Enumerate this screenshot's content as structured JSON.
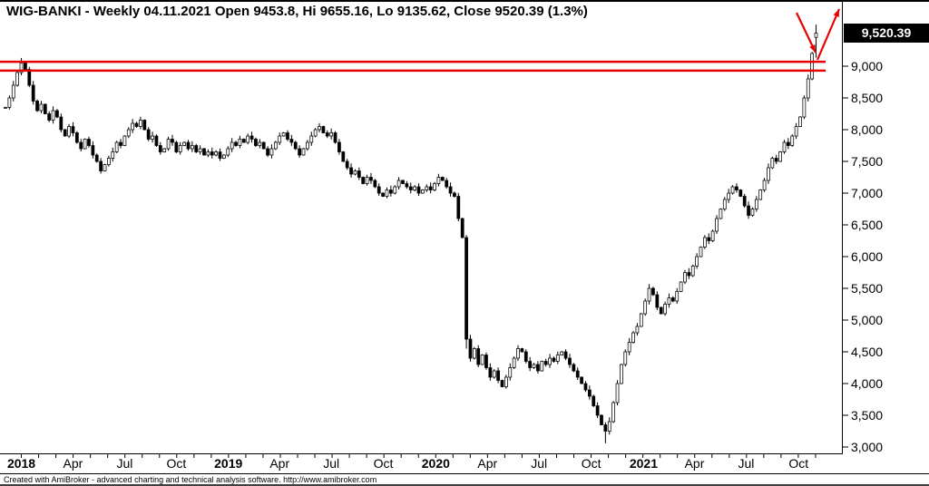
{
  "title": "WIG-BANKI - Weekly 04.11.2021 Open 9453.8, Hi 9655.16, Lo 9135.62, Close 9520.39 (1.3%)",
  "price_badge": "9,520.39",
  "footer": "Created with AmiBroker - advanced charting and technical analysis software. http://www.amibroker.com",
  "colors": {
    "background": "#ffffff",
    "candle": "#000000",
    "candle_up_fill": "#ffffff",
    "axis": "#000000",
    "annotation_red": "#e80000",
    "badge_bg": "#000000",
    "badge_text": "#ffffff"
  },
  "chart_data": {
    "type": "candlestick",
    "symbol": "WIG-BANKI",
    "interval": "Weekly",
    "last_date": "04.11.2021",
    "last_candle": {
      "open": 9453.8,
      "high": 9655.16,
      "low": 9135.62,
      "close": 9520.39,
      "change_pct": "1.3%"
    },
    "ylim": [
      2950,
      9900
    ],
    "grid": "off",
    "resistance_zone": [
      8930,
      9070
    ],
    "y_ticks": [
      {
        "label": "9,000",
        "value": 9000
      },
      {
        "label": "8,500",
        "value": 8500
      },
      {
        "label": "8,000",
        "value": 8000
      },
      {
        "label": "7,500",
        "value": 7500
      },
      {
        "label": "7,000",
        "value": 7000
      },
      {
        "label": "6,500",
        "value": 6500
      },
      {
        "label": "6,000",
        "value": 6000
      },
      {
        "label": "5,500",
        "value": 5500
      },
      {
        "label": "5,000",
        "value": 5000
      },
      {
        "label": "4,500",
        "value": 4500
      },
      {
        "label": "4,000",
        "value": 4000
      },
      {
        "label": "3,500",
        "value": 3500
      },
      {
        "label": "3,000",
        "value": 3000
      }
    ],
    "x_ticks": [
      {
        "label": "2018",
        "week": 4,
        "bold": true
      },
      {
        "label": "Apr",
        "week": 17
      },
      {
        "label": "Jul",
        "week": 30
      },
      {
        "label": "Oct",
        "week": 43
      },
      {
        "label": "2019",
        "week": 56.1,
        "bold": true
      },
      {
        "label": "Apr",
        "week": 69
      },
      {
        "label": "Jul",
        "week": 82
      },
      {
        "label": "Oct",
        "week": 95.1
      },
      {
        "label": "2020",
        "week": 108.3,
        "bold": true
      },
      {
        "label": "Apr",
        "week": 121.3
      },
      {
        "label": "Jul",
        "week": 134.3
      },
      {
        "label": "Oct",
        "week": 147.4
      },
      {
        "label": "2021",
        "week": 160.6,
        "bold": true
      },
      {
        "label": "Apr",
        "week": 173.4
      },
      {
        "label": "Jul",
        "week": 186.4
      },
      {
        "label": "Oct",
        "week": 199.6
      }
    ],
    "wick_overrides": {
      "4": {
        "high": 9130
      },
      "116": {
        "low": 4550
      },
      "151": {
        "low": 3060
      }
    },
    "weekly_closes": [
      8350,
      8500,
      8700,
      8900,
      9050,
      8950,
      8700,
      8450,
      8300,
      8400,
      8250,
      8150,
      8300,
      8200,
      8000,
      7900,
      8050,
      7950,
      7800,
      7700,
      7850,
      7750,
      7600,
      7500,
      7350,
      7450,
      7550,
      7650,
      7800,
      7750,
      7900,
      8000,
      8100,
      8050,
      8150,
      8000,
      7850,
      7900,
      7750,
      7650,
      7700,
      7850,
      7800,
      7650,
      7750,
      7800,
      7700,
      7750,
      7650,
      7700,
      7600,
      7650,
      7600,
      7650,
      7550,
      7600,
      7700,
      7800,
      7750,
      7850,
      7800,
      7900,
      7850,
      7750,
      7800,
      7700,
      7600,
      7700,
      7800,
      7900,
      7950,
      7850,
      7800,
      7700,
      7600,
      7700,
      7800,
      7900,
      8000,
      8050,
      7950,
      7900,
      7950,
      7800,
      7650,
      7500,
      7400,
      7300,
      7350,
      7250,
      7150,
      7250,
      7200,
      7100,
      7000,
      6950,
      7050,
      7000,
      7100,
      7200,
      7150,
      7100,
      7050,
      7100,
      7000,
      7050,
      7100,
      7050,
      7150,
      7250,
      7200,
      7100,
      7000,
      6950,
      6600,
      6300,
      4700,
      4400,
      4550,
      4300,
      4450,
      4250,
      4100,
      4200,
      4050,
      3950,
      4100,
      4250,
      4400,
      4550,
      4500,
      4350,
      4250,
      4300,
      4200,
      4350,
      4300,
      4400,
      4350,
      4450,
      4500,
      4400,
      4300,
      4200,
      4100,
      4000,
      3900,
      3800,
      3650,
      3500,
      3350,
      3250,
      3400,
      3700,
      4000,
      4300,
      4500,
      4650,
      4800,
      4900,
      5100,
      5300,
      5500,
      5400,
      5200,
      5100,
      5250,
      5350,
      5300,
      5450,
      5600,
      5750,
      5700,
      5850,
      6000,
      6150,
      6300,
      6250,
      6400,
      6600,
      6750,
      6900,
      7000,
      7100,
      7050,
      6950,
      6800,
      6650,
      6750,
      6900,
      7050,
      7200,
      7400,
      7550,
      7500,
      7650,
      7800,
      7750,
      7900,
      8050,
      8200,
      8500,
      8800,
      9200,
      9520.39
    ]
  },
  "annotations": {
    "arrows": [
      {
        "from": [
          878,
          14
        ],
        "to": [
          899,
          58
        ]
      },
      {
        "from": [
          901,
          66
        ],
        "to": [
          925,
          10
        ]
      }
    ]
  }
}
